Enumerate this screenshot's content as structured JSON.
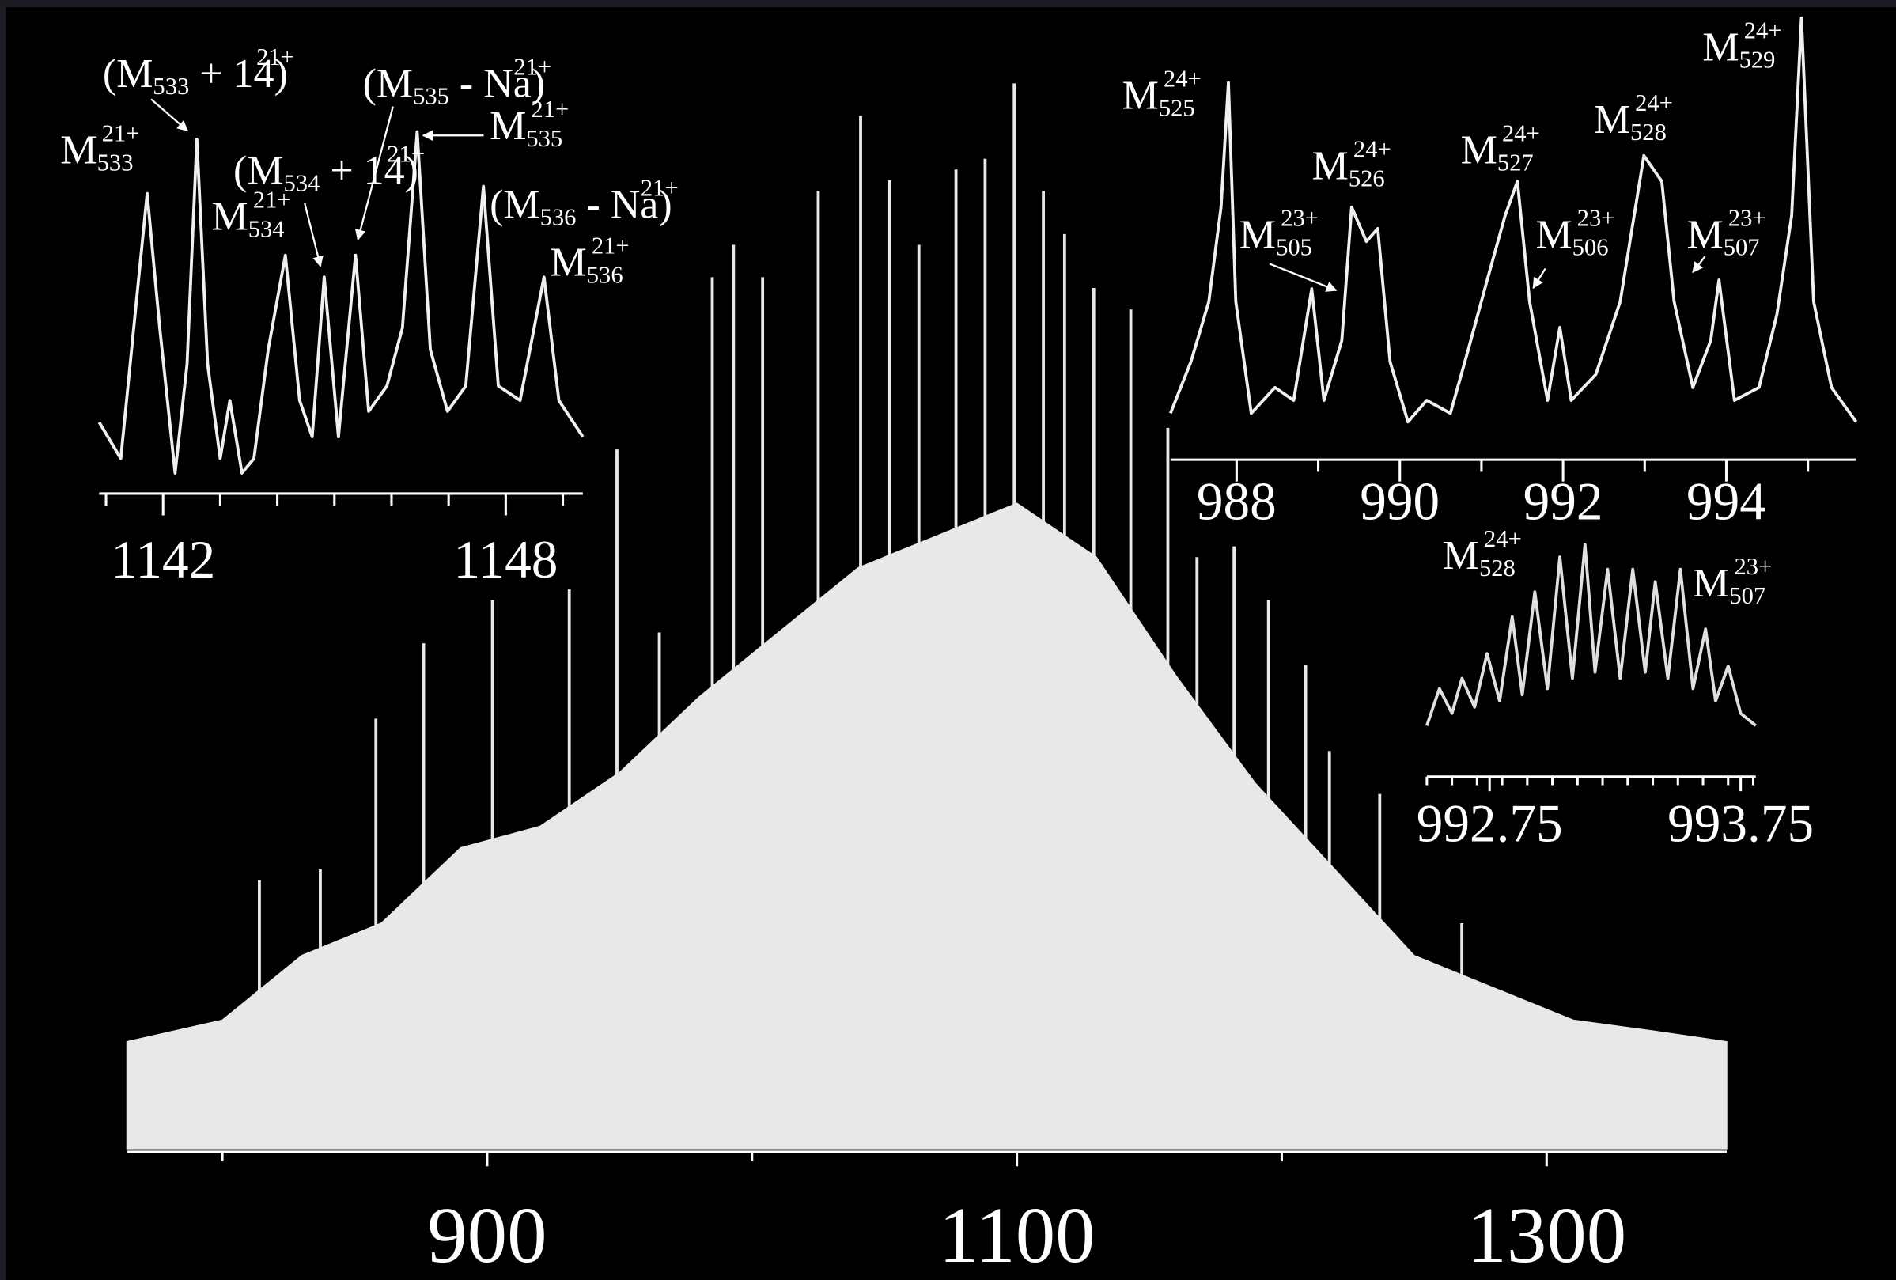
{
  "chart_data": [
    {
      "type": "spectrum",
      "color": "#e8e8e8",
      "x": [
        814,
        837,
        858,
        876,
        902,
        931,
        949,
        965,
        985,
        993,
        1004,
        1025,
        1041,
        1052,
        1063,
        1077,
        1088,
        1099,
        1110,
        1118,
        1129,
        1143,
        1157,
        1168,
        1182,
        1195,
        1209,
        1218,
        1237,
        1268
      ],
      "values": [
        25,
        26,
        40,
        47,
        51,
        52,
        65,
        48,
        81,
        84,
        81,
        89,
        96,
        90,
        84,
        91,
        92,
        99,
        89,
        85,
        80,
        78,
        67,
        55,
        56,
        51,
        45,
        37,
        33,
        21
      ],
      "envelope": {
        "x": [
          764,
          800,
          830,
          860,
          890,
          920,
          950,
          980,
          1010,
          1040,
          1070,
          1100,
          1130,
          1160,
          1190,
          1220,
          1250,
          1280,
          1310,
          1340,
          1368
        ],
        "values": [
          10,
          12,
          18,
          21,
          28,
          30,
          35,
          42,
          48,
          54,
          57,
          60,
          55,
          44,
          34,
          26,
          18,
          15,
          12,
          11,
          10
        ]
      },
      "xlim": [
        764,
        1368
      ],
      "xticks": [
        900,
        1100,
        1300
      ],
      "minor_xticks": [
        800,
        1000,
        1200
      ],
      "ylim": [
        0,
        100
      ]
    },
    {
      "type": "line",
      "color": "#f0f0f0",
      "x": [
        1140.88,
        1141.26,
        1141.51,
        1141.72,
        1141.94,
        1142.21,
        1142.42,
        1142.59,
        1142.78,
        1143.0,
        1143.17,
        1143.38,
        1143.59,
        1143.84,
        1144.14,
        1144.39,
        1144.61,
        1144.82,
        1145.07,
        1145.37,
        1145.6,
        1145.92,
        1146.19,
        1146.45,
        1146.68,
        1146.98,
        1147.3,
        1147.61,
        1147.87,
        1148.25,
        1148.67,
        1148.93,
        1149.35
      ],
      "values": [
        17,
        7,
        47,
        80,
        43,
        3,
        33,
        95,
        33,
        7,
        23,
        3,
        7,
        37,
        63,
        23,
        13,
        57,
        13,
        63,
        20,
        27,
        43,
        97,
        37,
        20,
        27,
        82,
        27,
        23,
        57,
        23,
        13
      ],
      "xlim": [
        1140.88,
        1149.35
      ],
      "xticks": [
        1142,
        1148
      ],
      "minor_xticks": [
        1141,
        1143,
        1144,
        1145,
        1146,
        1147,
        1149
      ],
      "ylim": [
        0,
        100
      ],
      "annotations": [
        {
          "parts": [
            {
              "text": "M"
            },
            {
              "text": "533",
              "style": "sub"
            },
            {
              "text": "21+",
              "style": "sup"
            }
          ]
        },
        {
          "parts": [
            {
              "text": "(M"
            },
            {
              "text": "533",
              "style": "sub"
            },
            {
              "text": " + 14)"
            },
            {
              "text": "21+",
              "style": "sup"
            }
          ]
        },
        {
          "parts": [
            {
              "text": "(M"
            },
            {
              "text": "535",
              "style": "sub"
            },
            {
              "text": " - Na)"
            },
            {
              "text": "21+",
              "style": "sup"
            }
          ]
        },
        {
          "parts": [
            {
              "text": "M"
            },
            {
              "text": "535",
              "style": "sub"
            },
            {
              "text": "21+",
              "style": "sup"
            }
          ]
        },
        {
          "parts": [
            {
              "text": "(M"
            },
            {
              "text": "534",
              "style": "sub"
            },
            {
              "text": " + 14)"
            },
            {
              "text": "21+",
              "style": "sup"
            }
          ]
        },
        {
          "parts": [
            {
              "text": "M"
            },
            {
              "text": "534",
              "style": "sub"
            },
            {
              "text": "21+",
              "style": "sup"
            }
          ]
        },
        {
          "parts": [
            {
              "text": "(M"
            },
            {
              "text": "536",
              "style": "sub"
            },
            {
              "text": " - Na)"
            },
            {
              "text": "21+",
              "style": "sup"
            }
          ]
        },
        {
          "parts": [
            {
              "text": "M"
            },
            {
              "text": "536",
              "style": "sub"
            },
            {
              "text": "21+",
              "style": "sup"
            }
          ]
        }
      ]
    },
    {
      "type": "line",
      "color": "#f0f0f0",
      "x": [
        987.19,
        987.44,
        987.66,
        987.81,
        987.9,
        987.99,
        988.18,
        988.47,
        988.7,
        988.92,
        989.07,
        989.29,
        989.41,
        989.59,
        989.73,
        989.88,
        990.1,
        990.33,
        990.62,
        990.84,
        991.07,
        991.29,
        991.44,
        991.59,
        991.81,
        991.96,
        992.1,
        992.4,
        992.7,
        992.99,
        993.21,
        993.36,
        993.59,
        993.81,
        993.91,
        994.1,
        994.4,
        994.62,
        994.8,
        994.92,
        995.07,
        995.29,
        995.59
      ],
      "values": [
        8,
        20,
        34,
        56,
        85,
        34,
        8,
        14,
        11,
        37,
        11,
        25,
        56,
        48,
        51,
        20,
        6,
        11,
        8,
        23,
        39,
        54,
        62,
        34,
        11,
        28,
        11,
        17,
        34,
        68,
        62,
        34,
        14,
        25,
        39,
        11,
        14,
        31,
        54,
        100,
        34,
        14,
        6
      ],
      "xlim": [
        987.19,
        995.59
      ],
      "xticks": [
        988,
        990,
        992,
        994
      ],
      "minor_xticks": [
        989,
        991,
        993,
        995
      ],
      "ylim": [
        0,
        100
      ],
      "annotations": [
        {
          "parts": [
            {
              "text": "M"
            },
            {
              "text": "525",
              "style": "sub"
            },
            {
              "text": "24+",
              "style": "sup"
            }
          ]
        },
        {
          "parts": [
            {
              "text": "M"
            },
            {
              "text": "526",
              "style": "sub"
            },
            {
              "text": "24+",
              "style": "sup"
            }
          ]
        },
        {
          "parts": [
            {
              "text": "M"
            },
            {
              "text": "527",
              "style": "sub"
            },
            {
              "text": "24+",
              "style": "sup"
            }
          ]
        },
        {
          "parts": [
            {
              "text": "M"
            },
            {
              "text": "528",
              "style": "sub"
            },
            {
              "text": "24+",
              "style": "sup"
            }
          ]
        },
        {
          "parts": [
            {
              "text": "M"
            },
            {
              "text": "529",
              "style": "sub"
            },
            {
              "text": "24+",
              "style": "sup"
            }
          ]
        },
        {
          "parts": [
            {
              "text": "M"
            },
            {
              "text": "505",
              "style": "sub"
            },
            {
              "text": "23+",
              "style": "sup"
            }
          ]
        },
        {
          "parts": [
            {
              "text": "M"
            },
            {
              "text": "506",
              "style": "sub"
            },
            {
              "text": "23+",
              "style": "sup"
            }
          ]
        },
        {
          "parts": [
            {
              "text": "M"
            },
            {
              "text": "507",
              "style": "sub"
            },
            {
              "text": "23+",
              "style": "sup"
            }
          ]
        }
      ]
    },
    {
      "type": "line",
      "color": "#e0e0e0",
      "x": [
        992.5,
        992.55,
        992.6,
        992.64,
        992.69,
        992.74,
        992.79,
        992.84,
        992.88,
        992.93,
        992.98,
        993.03,
        993.08,
        993.13,
        993.17,
        993.22,
        993.27,
        993.32,
        993.37,
        993.41,
        993.46,
        993.51,
        993.56,
        993.61,
        993.65,
        993.7,
        993.75,
        993.81
      ],
      "values": [
        6,
        24,
        12,
        29,
        15,
        41,
        18,
        59,
        21,
        71,
        24,
        88,
        29,
        94,
        32,
        82,
        29,
        82,
        32,
        76,
        29,
        82,
        24,
        53,
        18,
        35,
        12,
        6
      ],
      "xlim": [
        992.5,
        993.81
      ],
      "xticks": [
        {
          "value": 992.75,
          "label": "992.75"
        },
        {
          "value": 993.75,
          "label": "993.75"
        }
      ],
      "minor_xticks": [
        992.5,
        992.6,
        992.7,
        992.8,
        992.9,
        993.0,
        993.1,
        993.2,
        993.3,
        993.4,
        993.5,
        993.6,
        993.7,
        993.8
      ],
      "ylim": [
        0,
        100
      ],
      "annotations": [
        {
          "parts": [
            {
              "text": "M"
            },
            {
              "text": "528",
              "style": "sub"
            },
            {
              "text": "24+",
              "style": "sup"
            }
          ]
        },
        {
          "parts": [
            {
              "text": "M"
            },
            {
              "text": "507",
              "style": "sub"
            },
            {
              "text": "23+",
              "style": "sup"
            }
          ]
        }
      ]
    }
  ]
}
